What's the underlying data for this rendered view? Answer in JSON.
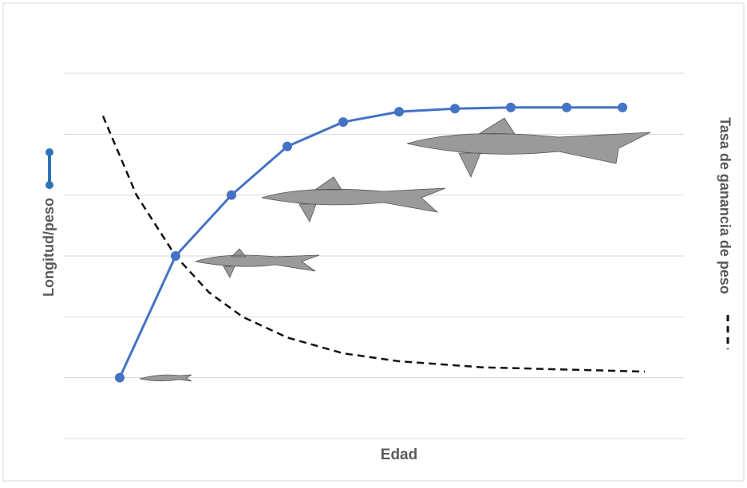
{
  "chart_data": {
    "type": "line",
    "x_label": "Edad",
    "xlim": [
      0,
      11.1
    ],
    "ylim": [
      0,
      6
    ],
    "yticks": [
      0,
      1,
      2,
      3,
      4,
      5,
      6
    ],
    "y2lim": [
      0,
      6
    ],
    "grid": true,
    "series": [
      {
        "name": "Longitud/peso",
        "color": "#4472c4",
        "markers": true,
        "dashed": false,
        "x": [
          1,
          2,
          3,
          4,
          5,
          6,
          7,
          8,
          9,
          10
        ],
        "values": [
          1,
          3,
          4,
          4.8,
          5.2,
          5.37,
          5.42,
          5.44,
          5.44,
          5.44
        ]
      },
      {
        "name": "Tasa de ganancia de peso",
        "color": "#111111",
        "markers": false,
        "dashed": true,
        "axis": "y2",
        "x": [
          0.7,
          1.3,
          2,
          2.6,
          3.2,
          4,
          5,
          6,
          7.5,
          10.4
        ],
        "values": [
          5.3,
          4.0,
          3.0,
          2.4,
          2.0,
          1.66,
          1.4,
          1.27,
          1.17,
          1.1
        ]
      }
    ]
  }
}
